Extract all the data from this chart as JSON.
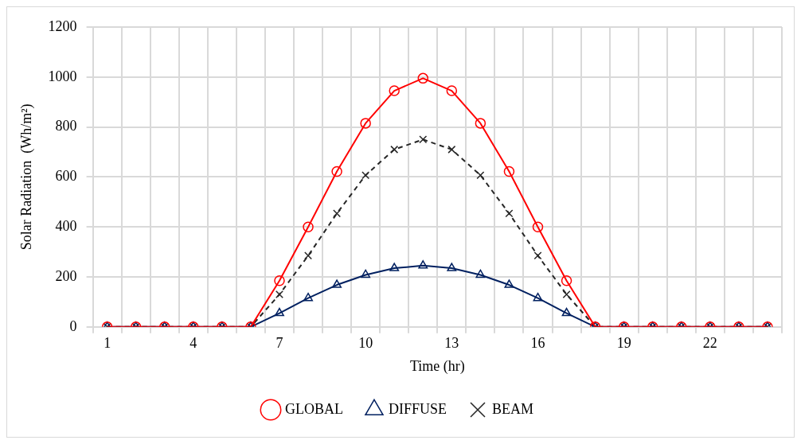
{
  "chart_data": {
    "type": "line",
    "categories": [
      "1",
      null,
      null,
      "4",
      null,
      null,
      "7",
      null,
      null,
      "10",
      null,
      null,
      "13",
      null,
      null,
      "16",
      null,
      null,
      "19",
      null,
      null,
      "22",
      null,
      null
    ],
    "series": [
      {
        "name": "GLOBAL",
        "color": "#ff0000",
        "marker": "circle",
        "line_style": "solid",
        "values": [
          0,
          0,
          0,
          0,
          0,
          0,
          185,
          400,
          622,
          815,
          945,
          995,
          945,
          815,
          622,
          400,
          185,
          0,
          0,
          0,
          0,
          0,
          0,
          0
        ]
      },
      {
        "name": "DIFFUSE",
        "color": "#002060",
        "marker": "triangle",
        "line_style": "solid",
        "values": [
          0,
          0,
          0,
          0,
          0,
          0,
          55,
          115,
          168,
          208,
          235,
          245,
          235,
          208,
          168,
          115,
          55,
          0,
          0,
          0,
          0,
          0,
          0,
          0
        ]
      },
      {
        "name": "BEAM",
        "color": "#262626",
        "marker": "cross",
        "line_style": "dashed",
        "values": [
          0,
          0,
          0,
          0,
          0,
          0,
          130,
          285,
          454,
          607,
          710,
          750,
          710,
          607,
          454,
          285,
          130,
          0,
          0,
          0,
          0,
          0,
          0,
          0
        ]
      }
    ],
    "xlabel": "Time (hr)",
    "ylabel": "Solar Radiation  (Wh/m²)",
    "ylim": [
      0,
      1200
    ],
    "yticks": [
      0,
      200,
      400,
      600,
      800,
      1000,
      1200
    ],
    "grid": true,
    "legend": "bottom"
  }
}
